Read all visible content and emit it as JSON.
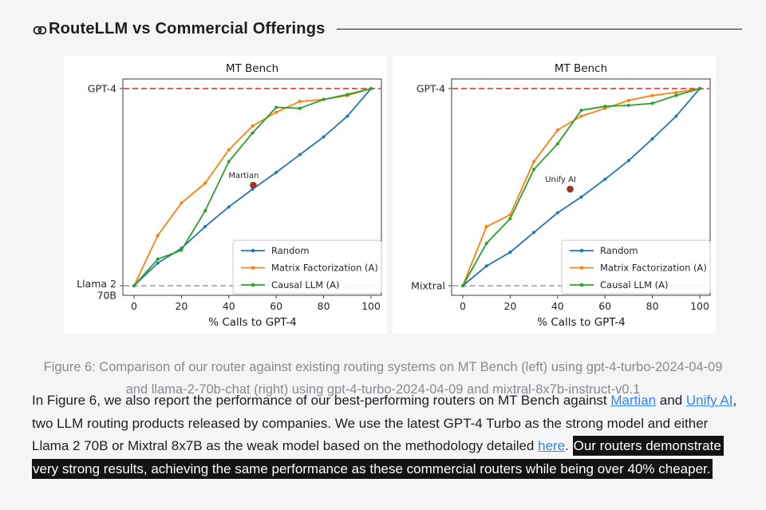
{
  "header": {
    "title": "RouteLLM vs Commercial Offerings"
  },
  "figure": {
    "caption": "Figure 6: Comparison of our router against existing routing systems on MT Bench (left) using gpt-4-turbo-2024-04-09 and llama-2-70b-chat (right) using gpt-4-turbo-2024-04-09 and mixtral-8x7b-instruct-v0.1"
  },
  "chart_data": [
    {
      "type": "line",
      "panel": "left",
      "title": "MT Bench",
      "xlabel": "% Calls to GPT-4",
      "x": [
        0,
        10,
        20,
        30,
        40,
        50,
        60,
        70,
        80,
        90,
        100
      ],
      "xticks": [
        0,
        20,
        40,
        60,
        80,
        100
      ],
      "ylim": [
        0,
        1
      ],
      "y_top_label": "GPT-4",
      "y_bottom_lines": [
        "Llama 2",
        "70B"
      ],
      "grid": false,
      "legend_position": "lower right",
      "reference_lines": [
        {
          "y": 1,
          "color": "#ee2222",
          "style": "dashed",
          "label": "GPT-4"
        },
        {
          "y": 0,
          "color": "#9c9c9c",
          "style": "dashed",
          "label": "Llama 2 70B"
        }
      ],
      "series": [
        {
          "name": "Random",
          "color": "#1f77b4",
          "values": [
            0,
            0.115,
            0.19,
            0.3,
            0.4,
            0.49,
            0.575,
            0.665,
            0.755,
            0.86,
            1.0
          ]
        },
        {
          "name": "Matrix Factorization (A)",
          "color": "#ff7f0e",
          "values": [
            0,
            0.255,
            0.42,
            0.52,
            0.69,
            0.81,
            0.88,
            0.935,
            0.945,
            0.965,
            1.0
          ]
        },
        {
          "name": "Causal LLM (A)",
          "color": "#2ca02c",
          "values": [
            0,
            0.135,
            0.18,
            0.38,
            0.63,
            0.775,
            0.905,
            0.9,
            0.945,
            0.97,
            1.0
          ]
        }
      ],
      "annotation": {
        "label": "Martian",
        "x": 50.3,
        "y": 0.51,
        "color": "#9e352c"
      }
    },
    {
      "type": "line",
      "panel": "right",
      "title": "MT Bench",
      "xlabel": "% Calls to GPT-4",
      "x": [
        0,
        10,
        20,
        30,
        40,
        50,
        60,
        70,
        80,
        90,
        100
      ],
      "xticks": [
        0,
        20,
        40,
        60,
        80,
        100
      ],
      "ylim": [
        0,
        1
      ],
      "y_top_label": "GPT-4",
      "y_bottom_lines": [
        "Mixtral"
      ],
      "grid": false,
      "legend_position": "lower right",
      "reference_lines": [
        {
          "y": 1,
          "color": "#ee2222",
          "style": "dashed",
          "label": "GPT-4"
        },
        {
          "y": 0,
          "color": "#9c9c9c",
          "style": "dashed",
          "label": "Mixtral"
        }
      ],
      "series": [
        {
          "name": "Random",
          "color": "#1f77b4",
          "values": [
            0,
            0.1,
            0.17,
            0.27,
            0.37,
            0.45,
            0.54,
            0.635,
            0.745,
            0.86,
            1.0
          ]
        },
        {
          "name": "Matrix Factorization (A)",
          "color": "#ff7f0e",
          "values": [
            0,
            0.3,
            0.36,
            0.63,
            0.79,
            0.86,
            0.9,
            0.94,
            0.965,
            0.98,
            1.0
          ]
        },
        {
          "name": "Causal LLM (A)",
          "color": "#2ca02c",
          "values": [
            0,
            0.215,
            0.34,
            0.59,
            0.72,
            0.89,
            0.91,
            0.915,
            0.925,
            0.965,
            1.0
          ]
        }
      ],
      "annotation": {
        "label": "Unify AI",
        "x": 45.3,
        "y": 0.49,
        "color": "#9e352c"
      }
    }
  ],
  "paragraph": {
    "seg1": "In Figure 6, we also report the performance of our best-performing routers on MT Bench against ",
    "link_martian": "Martian",
    "seg2": " and ",
    "link_unify": "Unify AI",
    "seg3": ", two LLM routing products released by companies. We use the latest GPT-4 Turbo as the strong model and either Llama 2 70B or Mixtral 8x7B as the weak model based on the methodology detailed ",
    "link_here": "here",
    "seg4": ". ",
    "highlight": "Our routers demonstrate very strong results, achieving the same performance as these commercial routers while being over 40% cheaper."
  },
  "colors": {
    "page_bg": "#f5f5f7",
    "link": "#3485f7",
    "highlight_bg": "#131313",
    "caption_gray": "#8a8a8f"
  }
}
